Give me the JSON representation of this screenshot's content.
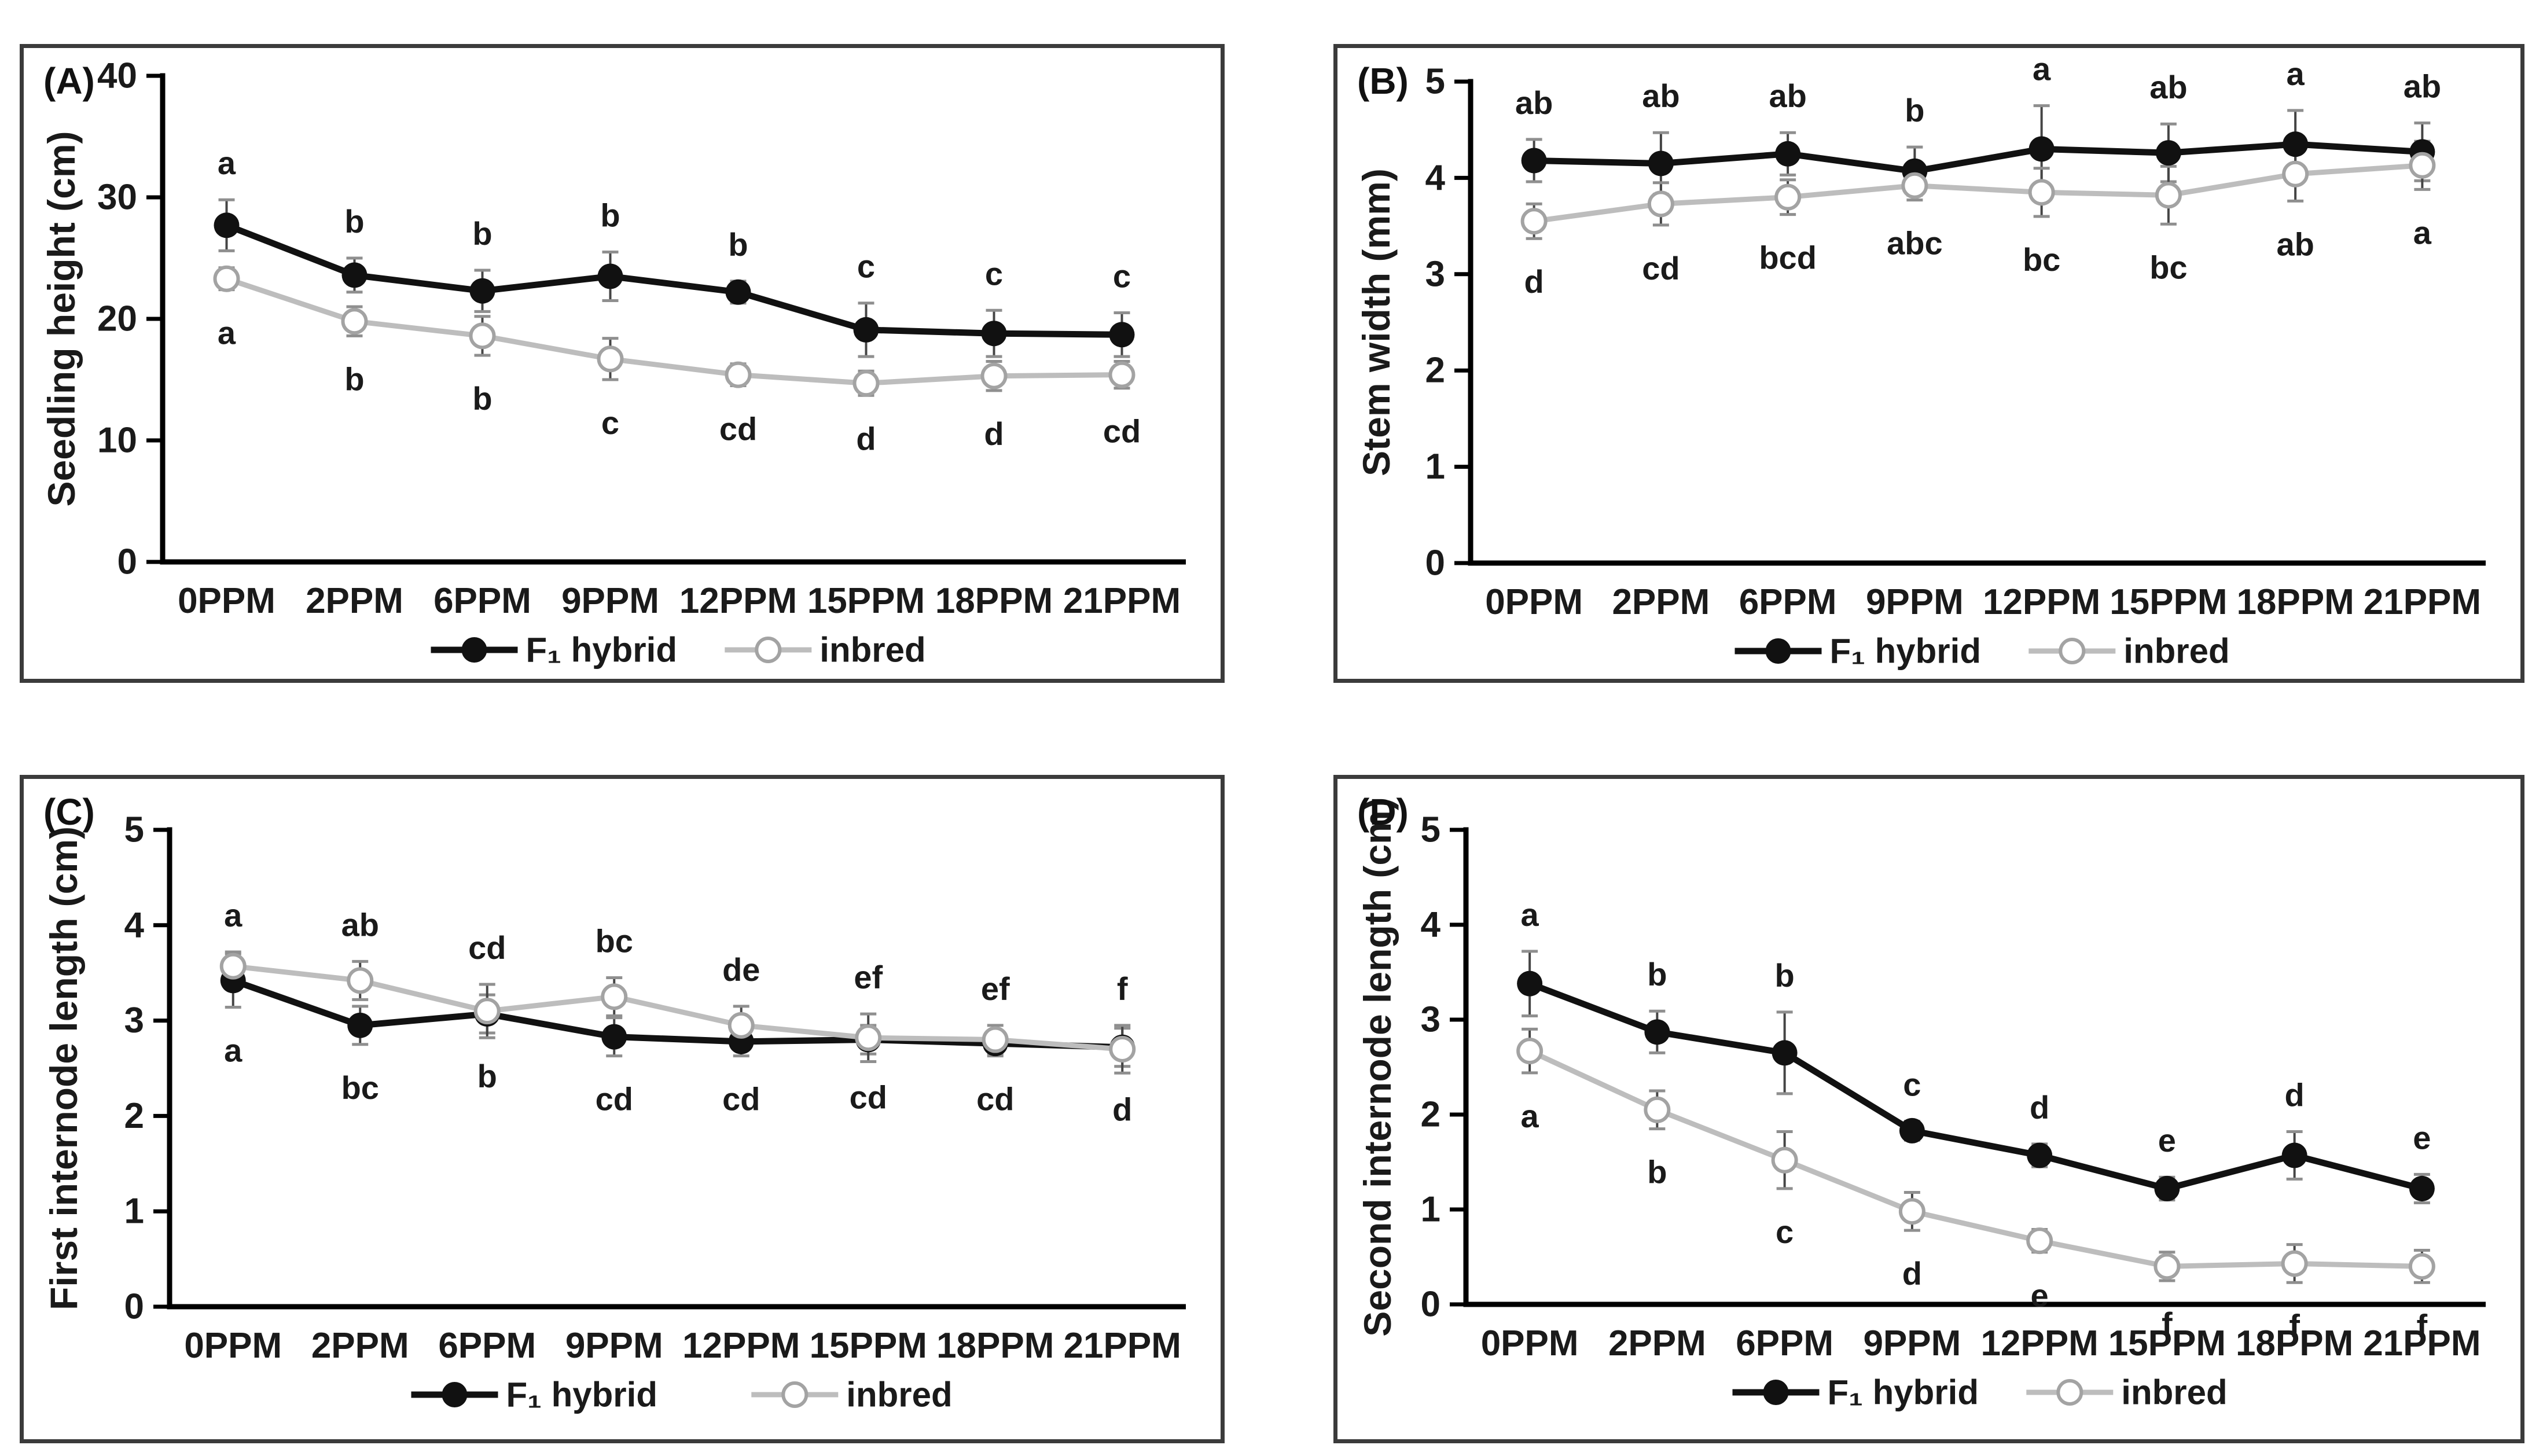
{
  "figure": {
    "background": "#ffffff",
    "border_color": "#3b3b3b"
  },
  "palette": {
    "hybrid_color": "#111111",
    "inbred_line_color": "#bdbdbd",
    "inbred_marker_stroke": "#a3a3a3",
    "error_bar_color": "#454545",
    "error_cap_color": "#8f8f8f",
    "axis_color": "#000000",
    "text_color": "#1a1a1a"
  },
  "chart_data": [
    {
      "panel_label": "(A)",
      "type": "line",
      "title": "",
      "xlabel": "",
      "ylabel": "Seedling height (cm)",
      "ylim": [
        0,
        40
      ],
      "yticks": [
        0,
        10,
        20,
        30,
        40
      ],
      "grid": false,
      "legend_position": "bottom",
      "categories": [
        "0PPM",
        "2PPM",
        "6PPM",
        "9PPM",
        "12PPM",
        "15PPM",
        "18PPM",
        "21PPM"
      ],
      "series": [
        {
          "name": "F₁ hybrid",
          "marker": "filled-circle",
          "letter_side": "above",
          "values": [
            27.7,
            23.6,
            22.3,
            23.5,
            22.2,
            19.1,
            18.8,
            18.7
          ],
          "errors": [
            2.1,
            1.4,
            1.7,
            2.0,
            0.9,
            2.2,
            1.9,
            1.8
          ],
          "letters": [
            "a",
            "b",
            "b",
            "b",
            "b",
            "c",
            "c",
            "c"
          ]
        },
        {
          "name": "inbred",
          "marker": "open-circle",
          "letter_side": "below",
          "values": [
            23.3,
            19.8,
            18.6,
            16.7,
            15.4,
            14.7,
            15.3,
            15.4
          ],
          "errors": [
            0.9,
            1.2,
            1.6,
            1.7,
            0.9,
            1.0,
            1.2,
            1.1
          ],
          "letters": [
            "a",
            "b",
            "b",
            "c",
            "cd",
            "d",
            "d",
            "cd"
          ]
        }
      ]
    },
    {
      "panel_label": "(B)",
      "type": "line",
      "title": "",
      "xlabel": "",
      "ylabel": "Stem width (mm)",
      "ylim": [
        0,
        5
      ],
      "yticks": [
        0,
        1,
        2,
        3,
        4,
        5
      ],
      "grid": false,
      "legend_position": "bottom",
      "categories": [
        "0PPM",
        "2PPM",
        "6PPM",
        "9PPM",
        "12PPM",
        "15PPM",
        "18PPM",
        "21PPM"
      ],
      "series": [
        {
          "name": "F₁ hybrid",
          "marker": "filled-circle",
          "letter_side": "above",
          "values": [
            4.18,
            4.15,
            4.25,
            4.07,
            4.3,
            4.26,
            4.35,
            4.27
          ],
          "errors": [
            0.22,
            0.32,
            0.22,
            0.25,
            0.45,
            0.3,
            0.35,
            0.3
          ],
          "letters": [
            "ab",
            "ab",
            "ab",
            "b",
            "a",
            "ab",
            "a",
            "ab"
          ]
        },
        {
          "name": "inbred",
          "marker": "open-circle",
          "letter_side": "below",
          "values": [
            3.55,
            3.73,
            3.8,
            3.92,
            3.85,
            3.82,
            4.04,
            4.13
          ],
          "errors": [
            0.18,
            0.22,
            0.18,
            0.15,
            0.25,
            0.3,
            0.28,
            0.25
          ],
          "letters": [
            "d",
            "cd",
            "bcd",
            "abc",
            "bc",
            "bc",
            "ab",
            "a"
          ]
        }
      ]
    },
    {
      "panel_label": "(C)",
      "type": "line",
      "title": "",
      "xlabel": "",
      "ylabel": "First internode length (cm)",
      "ylim": [
        0,
        5
      ],
      "yticks": [
        0,
        1,
        2,
        3,
        4,
        5
      ],
      "grid": false,
      "legend_position": "bottom",
      "categories": [
        "0PPM",
        "2PPM",
        "6PPM",
        "9PPM",
        "12PPM",
        "15PPM",
        "18PPM",
        "21PPM"
      ],
      "series": [
        {
          "name": "F₁ hybrid",
          "marker": "filled-circle",
          "letter_side": "below",
          "values": [
            3.42,
            2.95,
            3.07,
            2.83,
            2.78,
            2.8,
            2.76,
            2.72
          ],
          "errors": [
            0.28,
            0.2,
            0.2,
            0.2,
            0.15,
            0.15,
            0.13,
            0.2
          ],
          "letters": [
            "a",
            "bc",
            "b",
            "cd",
            "cd",
            "cd",
            "cd",
            "d"
          ]
        },
        {
          "name": "inbred",
          "marker": "open-circle",
          "letter_side": "above",
          "values": [
            3.57,
            3.42,
            3.1,
            3.25,
            2.95,
            2.82,
            2.8,
            2.7
          ],
          "errors": [
            0.15,
            0.2,
            0.28,
            0.2,
            0.2,
            0.25,
            0.15,
            0.25
          ],
          "letters": [
            "a",
            "ab",
            "cd",
            "bc",
            "de",
            "ef",
            "ef",
            "f"
          ]
        }
      ]
    },
    {
      "panel_label": "(D)",
      "type": "line",
      "title": "",
      "xlabel": "",
      "ylabel": "Second internode length (cm)",
      "ylim": [
        0,
        5
      ],
      "yticks": [
        0,
        1,
        2,
        3,
        4,
        5
      ],
      "grid": false,
      "legend_position": "bottom",
      "categories": [
        "0PPM",
        "2PPM",
        "6PPM",
        "9PPM",
        "12PPM",
        "15PPM",
        "18PPM",
        "21PPM"
      ],
      "series": [
        {
          "name": "F₁ hybrid",
          "marker": "filled-circle",
          "letter_side": "above",
          "values": [
            3.38,
            2.87,
            2.65,
            1.83,
            1.57,
            1.22,
            1.57,
            1.22
          ],
          "errors": [
            0.34,
            0.22,
            0.43,
            0.1,
            0.12,
            0.12,
            0.25,
            0.15
          ],
          "letters": [
            "a",
            "b",
            "b",
            "c",
            "d",
            "e",
            "d",
            "e"
          ]
        },
        {
          "name": "inbred",
          "marker": "open-circle",
          "letter_side": "below",
          "values": [
            2.67,
            2.05,
            1.52,
            0.98,
            0.67,
            0.4,
            0.43,
            0.4
          ],
          "errors": [
            0.23,
            0.2,
            0.3,
            0.2,
            0.12,
            0.15,
            0.2,
            0.17
          ],
          "letters": [
            "a",
            "b",
            "c",
            "d",
            "e",
            "f",
            "f",
            "f"
          ]
        }
      ]
    }
  ]
}
